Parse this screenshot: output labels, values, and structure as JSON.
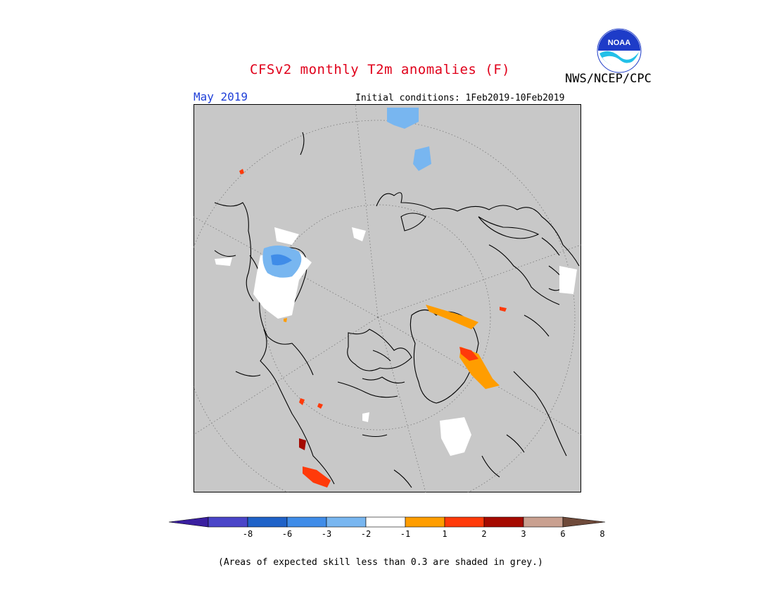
{
  "header": {
    "title": "CFSv2 monthly T2m anomalies (F)",
    "agency": "NWS/NCEP/CPC",
    "logo_text": "NOAA",
    "month": "May 2019",
    "initial_conditions": "Initial conditions: 1Feb2019-10Feb2019"
  },
  "legend": {
    "ticks": [
      "-8",
      "-6",
      "-3",
      "-2",
      "-1",
      "1",
      "2",
      "3",
      "6",
      "8"
    ],
    "colors": [
      "#3a1fa0",
      "#4a45c8",
      "#1f62c8",
      "#3f8ce8",
      "#78b6f0",
      "#ffffff",
      "#ff9d00",
      "#ff3a0a",
      "#a50a00",
      "#c9a090",
      "#6f4a3a"
    ],
    "footnote": "(Areas of expected skill less than 0.3 are shaded in grey.)"
  },
  "map": {
    "background": "#c8c8c8",
    "projection": "north polar stereographic"
  }
}
